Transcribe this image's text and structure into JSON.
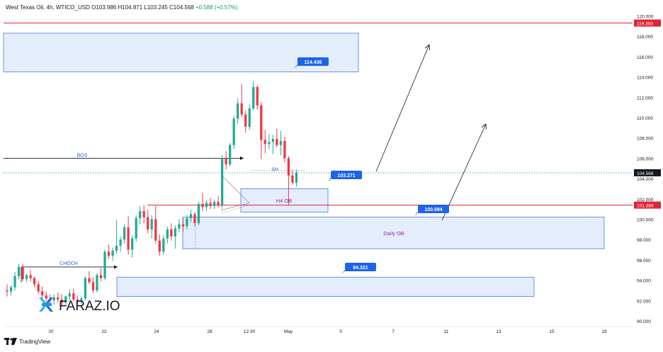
{
  "header": {
    "symbol": "West Texas Oil, 4h, WTICO_USD",
    "open_label": "O",
    "open": "103.986",
    "high_label": "H",
    "high": "104.871",
    "low_label": "L",
    "low": "103.245",
    "close_label": "C",
    "close": "104.568",
    "change": "+0.588 (+0.57%)"
  },
  "footer": {
    "brand": "TradingView"
  },
  "watermark": {
    "text": "FARAZ.IO"
  },
  "colors": {
    "up": "#22ab94",
    "down": "#f23645",
    "zone_fill": "#dbe7fb",
    "zone_stroke": "#4a7bd8",
    "label_bg": "#1e63e9",
    "red_line": "#e02437",
    "current_price_bg": "#22ab94"
  },
  "chart_data": {
    "type": "candlestick",
    "y_axis": {
      "ylim": [
        90,
        120.5
      ],
      "ticks": [
        "90.000",
        "92.000",
        "94.000",
        "96.000",
        "98.000",
        "100.000",
        "102.000",
        "104.000",
        "106.000",
        "108.000",
        "110.000",
        "112.000",
        "114.000",
        "116.000",
        "118.000",
        "120.000"
      ]
    },
    "x_axis": {
      "ticks": [
        "20",
        "22",
        "24",
        "28",
        "12:30",
        "May",
        "5",
        "7",
        "11",
        "13",
        "15",
        "19"
      ]
    },
    "candles": [
      [
        93.0,
        93.6,
        92.4,
        92.9
      ],
      [
        92.9,
        93.5,
        92.5,
        93.3
      ],
      [
        93.3,
        94.8,
        93.0,
        94.4
      ],
      [
        94.4,
        95.6,
        94.1,
        95.3
      ],
      [
        95.3,
        95.6,
        93.9,
        94.1
      ],
      [
        94.1,
        94.6,
        93.8,
        94.5
      ],
      [
        94.5,
        95.0,
        93.9,
        94.2
      ],
      [
        94.2,
        94.4,
        93.3,
        93.6
      ],
      [
        93.6,
        93.9,
        92.6,
        92.9
      ],
      [
        92.9,
        93.4,
        92.2,
        92.5
      ],
      [
        92.5,
        92.9,
        91.9,
        92.2
      ],
      [
        92.2,
        92.6,
        91.7,
        92.0
      ],
      [
        92.0,
        92.6,
        91.6,
        92.3
      ],
      [
        92.3,
        92.8,
        91.8,
        92.1
      ],
      [
        92.1,
        92.6,
        91.4,
        91.8
      ],
      [
        91.8,
        92.5,
        91.5,
        92.4
      ],
      [
        92.4,
        93.1,
        92.0,
        92.7
      ],
      [
        92.7,
        93.2,
        91.9,
        92.1
      ],
      [
        92.1,
        92.5,
        91.6,
        91.9
      ],
      [
        91.9,
        92.4,
        91.6,
        92.2
      ],
      [
        92.2,
        94.4,
        92.0,
        94.2
      ],
      [
        94.2,
        94.9,
        93.6,
        93.8
      ],
      [
        93.8,
        94.3,
        92.7,
        93.0
      ],
      [
        93.0,
        94.7,
        92.8,
        94.5
      ],
      [
        94.5,
        95.2,
        93.9,
        94.2
      ],
      [
        94.2,
        97.0,
        94.0,
        96.8
      ],
      [
        96.8,
        97.5,
        96.1,
        96.4
      ],
      [
        96.4,
        97.2,
        95.9,
        96.9
      ],
      [
        96.9,
        99.9,
        96.6,
        97.4
      ],
      [
        97.4,
        98.3,
        96.8,
        98.0
      ],
      [
        98.0,
        99.5,
        97.6,
        99.2
      ],
      [
        99.2,
        100.3,
        96.5,
        97.0
      ],
      [
        97.0,
        98.4,
        96.2,
        98.1
      ],
      [
        98.1,
        100.4,
        97.8,
        100.1
      ],
      [
        100.1,
        101.3,
        99.5,
        100.8
      ],
      [
        100.8,
        101.4,
        99.6,
        100.2
      ],
      [
        100.2,
        100.9,
        98.6,
        99.0
      ],
      [
        99.0,
        100.4,
        98.1,
        100.0
      ],
      [
        100.0,
        101.3,
        97.6,
        97.9
      ],
      [
        97.9,
        98.5,
        96.4,
        96.8
      ],
      [
        96.8,
        98.4,
        96.5,
        98.1
      ],
      [
        98.1,
        99.3,
        97.6,
        99.0
      ],
      [
        99.0,
        99.6,
        97.9,
        98.3
      ],
      [
        98.3,
        99.4,
        97.1,
        99.1
      ],
      [
        99.1,
        100.0,
        98.7,
        99.5
      ],
      [
        99.5,
        100.1,
        98.8,
        99.3
      ],
      [
        99.3,
        100.4,
        99.0,
        100.1
      ],
      [
        100.1,
        100.9,
        99.7,
        100.5
      ],
      [
        100.5,
        100.7,
        99.3,
        99.6
      ],
      [
        99.6,
        101.7,
        99.4,
        101.5
      ],
      [
        101.5,
        102.6,
        100.8,
        101.2
      ],
      [
        101.2,
        101.9,
        100.8,
        101.6
      ],
      [
        101.6,
        102.1,
        101.0,
        101.3
      ],
      [
        101.3,
        101.9,
        101.0,
        101.7
      ],
      [
        101.7,
        102.3,
        101.2,
        101.4
      ],
      [
        101.4,
        106.3,
        101.2,
        106.0
      ],
      [
        106.0,
        106.7,
        104.9,
        105.4
      ],
      [
        105.4,
        107.5,
        105.2,
        107.3
      ],
      [
        107.3,
        110.2,
        106.9,
        109.9
      ],
      [
        109.9,
        111.9,
        109.4,
        111.4
      ],
      [
        111.4,
        113.3,
        110.0,
        110.3
      ],
      [
        110.3,
        110.7,
        108.5,
        109.1
      ],
      [
        109.1,
        111.3,
        108.8,
        110.9
      ],
      [
        110.9,
        113.6,
        110.7,
        113.0
      ],
      [
        113.0,
        113.2,
        110.8,
        111.2
      ],
      [
        111.2,
        111.5,
        105.9,
        107.8
      ],
      [
        107.8,
        108.8,
        106.5,
        107.4
      ],
      [
        107.4,
        108.4,
        106.9,
        107.6
      ],
      [
        107.6,
        108.3,
        106.4,
        107.9
      ],
      [
        107.9,
        108.9,
        107.1,
        107.3
      ],
      [
        107.3,
        108.7,
        106.3,
        107.7
      ],
      [
        107.7,
        108.1,
        105.6,
        106.0
      ],
      [
        106.0,
        106.2,
        101.4,
        104.3
      ],
      [
        104.3,
        104.9,
        103.4,
        103.6
      ],
      [
        103.6,
        104.9,
        103.2,
        104.6
      ]
    ],
    "levels": [
      {
        "name": "119.300",
        "value": 119.3
      },
      {
        "name": "101.389",
        "value": 101.389
      }
    ],
    "current_price": {
      "value": 104.568,
      "label": "104.568"
    },
    "zones": [
      {
        "name": "supply-zone",
        "y_top": 118.3,
        "y_bottom": 114.5,
        "label": ""
      },
      {
        "name": "h4-ob",
        "y_top": 103.0,
        "y_bottom": 100.7,
        "label": "H4 OB"
      },
      {
        "name": "daily-ob",
        "y_top": 100.2,
        "y_bottom": 97.1,
        "label": "Daily OB"
      },
      {
        "name": "lower-zone",
        "y_top": 94.3,
        "y_bottom": 92.4,
        "label": ""
      }
    ],
    "price_labels": [
      {
        "text": "114.436",
        "value": 114.436
      },
      {
        "text": "103.271",
        "value": 103.271
      },
      {
        "text": "100.094",
        "value": 100.094
      },
      {
        "text": "94.321",
        "value": 94.321
      }
    ],
    "annotations": [
      {
        "text": "BOS"
      },
      {
        "text": "CHOCH"
      },
      {
        "text": "SH"
      }
    ]
  }
}
